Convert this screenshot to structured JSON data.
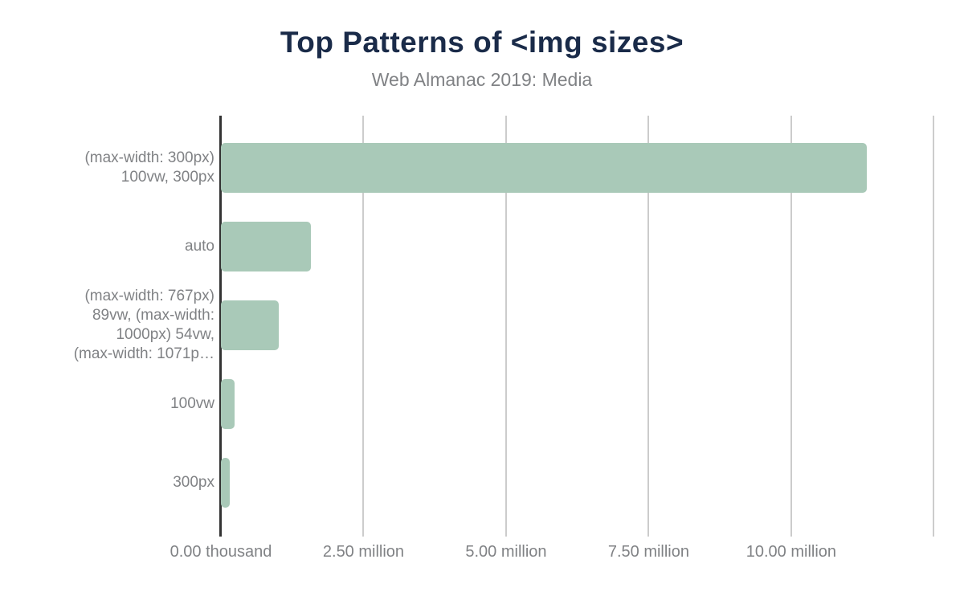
{
  "header": {
    "title": "Top Patterns of <img sizes>",
    "subtitle": "Web Almanac 2019: Media"
  },
  "colors": {
    "bar": "#a9c9b8",
    "title": "#1a2b49",
    "subtitle": "#808285",
    "axis_line": "#333333",
    "gridline": "#cccccc",
    "tick_label": "#808285"
  },
  "chart_data": {
    "type": "bar",
    "orientation": "horizontal",
    "title": "Top Patterns of <img sizes>",
    "subtitle": "Web Almanac 2019: Media",
    "xlabel": "",
    "ylabel": "",
    "grid": true,
    "legend": "none",
    "xlim": [
      0,
      13030000
    ],
    "categories": [
      "(max-width: 300px) 100vw, 300px",
      "auto",
      "(max-width: 767px) 89vw, (max-width: 1000px) 54vw, (max-width: 1071p…",
      "100vw",
      "300px"
    ],
    "display_labels": [
      [
        "(max-width: 300px)",
        "100vw, 300px"
      ],
      [
        "auto"
      ],
      [
        "(max-width: 767px)",
        "89vw, (max-width:",
        "1000px) 54vw,",
        "(max-width: 1071p…"
      ],
      [
        "100vw"
      ],
      [
        "300px"
      ]
    ],
    "values": [
      11320000,
      1580000,
      1010000,
      240000,
      160000
    ],
    "xticks": [
      {
        "value": 0,
        "label": "0.00 thousand"
      },
      {
        "value": 2500000,
        "label": "2.50 million"
      },
      {
        "value": 5000000,
        "label": "5.00 million"
      },
      {
        "value": 7500000,
        "label": "7.50 million"
      },
      {
        "value": 10000000,
        "label": "10.00 million"
      },
      {
        "value": 12500000,
        "label": ""
      }
    ]
  }
}
